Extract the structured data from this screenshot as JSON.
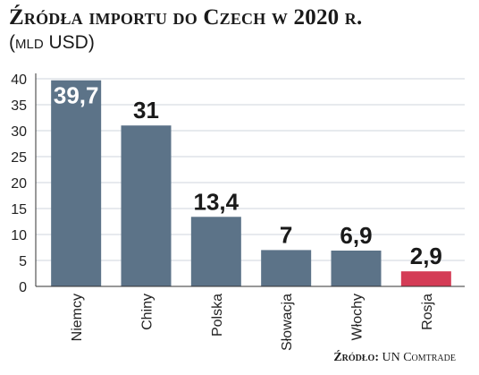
{
  "header": {
    "title": "Źródła importu do Czech w 2020 r.",
    "subtitle": "(mld USD)"
  },
  "footer": {
    "source_label": "Źródło:",
    "source_value": "UN Comtrade"
  },
  "colors": {
    "bar": "#5c7388",
    "highlight": "#d43c56",
    "grid": "#cfd6dc",
    "axis": "#333333"
  },
  "chart_data": {
    "type": "bar",
    "title": "Źródła importu do Czech w 2020 r.",
    "subtitle": "(mld USD)",
    "xlabel": "",
    "ylabel": "",
    "categories": [
      "Niemcy",
      "Chiny",
      "Polska",
      "Słowacja",
      "Włochy",
      "Rosja"
    ],
    "values": [
      39.7,
      31,
      13.4,
      7,
      6.9,
      2.9
    ],
    "value_labels": [
      "39,7",
      "31",
      "13,4",
      "7",
      "6,9",
      "2,9"
    ],
    "highlight": "Rosja",
    "ylim": [
      0,
      40
    ],
    "yticks": [
      0,
      5,
      10,
      15,
      20,
      25,
      30,
      35,
      40
    ],
    "grid": true,
    "legend": "none"
  }
}
